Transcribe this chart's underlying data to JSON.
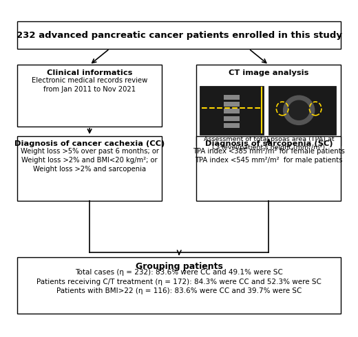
{
  "title": "232 advanced pancreatic cancer patients enrolled in this study",
  "box_top_title": "232 advanced pancreatic cancer patients enrolled in this study",
  "box_clinical_title": "Clinical informatics",
  "box_clinical_body": "Electronic medical records review\nfrom Jan 2011 to Nov 2021",
  "box_ct_title": "CT image analysis",
  "box_ct_caption": "Assessment of total psoas area (TPA) at\nL3 level/patient's height (mm²/m²)",
  "box_cc_title": "Diagnosis of cancer cachexia (CC)",
  "box_cc_body": "Weight loss >5% over past 6 months; or\nWeight loss >2% and BMI<20 kg/m²; or\nWeight loss >2% and sarcopenia",
  "box_sc_title": "Diagnosis of sarcopenia (SC)",
  "box_sc_body": "TPA index <385 mm²/m² for female patients\nTPA index <545 mm²/m²  for male patients",
  "box_group_title": "Grouping patients",
  "box_group_body": "Total cases (η = 232): 83.6% were CC and 49.1% were SC\nPatients receiving C/T treatment (η = 172): 84.3% were CC and 52.3% were SC\nPatients with BMI>22 (η = 116): 83.6% were CC and 39.7% were SC",
  "bg_color": "#ffffff",
  "box_border_color": "#000000",
  "text_color": "#000000",
  "arrow_color": "#000000"
}
